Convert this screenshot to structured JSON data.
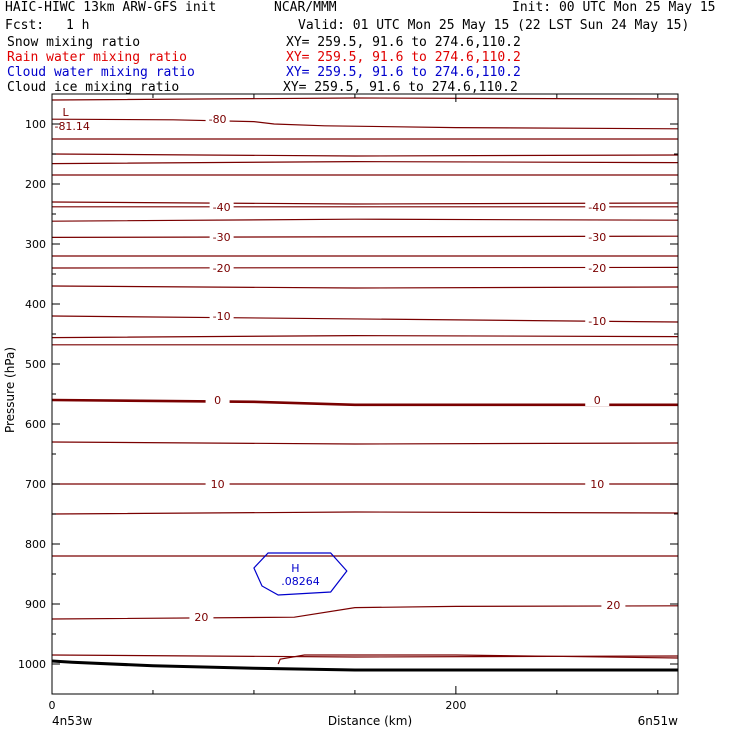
{
  "header": {
    "model": "HAIC-HIWC 13km ARW-GFS init",
    "org": "NCAR/MMM",
    "init": "Init: 00 UTC Mon 25 May 15",
    "fcst_label": "Fcst:",
    "fcst_value": "1 h",
    "valid": "Valid: 01 UTC Mon 25 May 15 (22 LST Sun 24 May 15)"
  },
  "fields": [
    {
      "name": "Snow mixing ratio",
      "xy": "XY= 259.5, 91.6 to 274.6,110.2",
      "color": "#000000"
    },
    {
      "name": "Rain water mixing ratio",
      "xy": "XY= 259.5, 91.6 to 274.6,110.2",
      "color": "#e00000"
    },
    {
      "name": "Cloud water mixing ratio",
      "xy": "XY= 259.5, 91.6 to 274.6,110.2",
      "color": "#0000cc"
    },
    {
      "name": "Cloud ice mixing ratio",
      "xy": "XY= 259.5, 91.6 to 274.6,110.2",
      "color": "#000000"
    }
  ],
  "chart_data": {
    "type": "line",
    "xlabel": "Distance (km)",
    "ylabel": "Pressure (hPa)",
    "xlim": [
      0,
      310
    ],
    "ylim": [
      1050,
      50
    ],
    "x_ticks": [
      0,
      200
    ],
    "x_minor_step": 50,
    "y_ticks": [
      100,
      200,
      300,
      400,
      500,
      600,
      700,
      800,
      900,
      1000
    ],
    "y_minor_step": 50,
    "endpoints": {
      "left": "4n53w",
      "right": "6n51w"
    },
    "temperature_contours": [
      {
        "level": "-80",
        "label_at": [
          82,
          92
        ],
        "points": [
          [
            0,
            92
          ],
          [
            60,
            93
          ],
          [
            100,
            96
          ],
          [
            110,
            100
          ],
          [
            135,
            103
          ],
          [
            200,
            106
          ],
          [
            310,
            108
          ]
        ]
      },
      {
        "level": "-40",
        "label_at": [
          [
            84,
            238
          ],
          [
            270,
            238
          ]
        ],
        "points": [
          [
            0,
            238
          ],
          [
            310,
            238
          ]
        ]
      },
      {
        "level": "-30",
        "label_at": [
          [
            84,
            288
          ],
          [
            270,
            288
          ]
        ],
        "points": [
          [
            0,
            289
          ],
          [
            310,
            287
          ]
        ]
      },
      {
        "level": "-20",
        "label_at": [
          [
            84,
            340
          ],
          [
            270,
            340
          ]
        ],
        "points": [
          [
            0,
            340
          ],
          [
            310,
            339
          ]
        ]
      },
      {
        "level": "-10",
        "label_at": [
          [
            84,
            420
          ],
          [
            270,
            428
          ]
        ],
        "points": [
          [
            0,
            420
          ],
          [
            310,
            430
          ]
        ]
      },
      {
        "level": "0",
        "label_at": [
          [
            82,
            560
          ],
          [
            270,
            560
          ]
        ],
        "points": [
          [
            0,
            560
          ],
          [
            100,
            563
          ],
          [
            150,
            568
          ],
          [
            310,
            568
          ]
        ]
      },
      {
        "level": "10",
        "label_at": [
          [
            82,
            700
          ],
          [
            270,
            700
          ]
        ],
        "points": [
          [
            0,
            700
          ],
          [
            310,
            700
          ]
        ]
      },
      {
        "level": "20",
        "label_at": [
          [
            74,
            922
          ],
          [
            278,
            902
          ]
        ],
        "points": [
          [
            0,
            925
          ],
          [
            120,
            922
          ],
          [
            150,
            906
          ],
          [
            200,
            904
          ],
          [
            310,
            903
          ]
        ]
      }
    ],
    "other_contours_hpa": [
      60,
      125,
      150,
      166,
      185,
      230,
      262,
      320,
      370,
      456,
      468,
      630,
      750,
      820,
      985
    ],
    "minimum": {
      "label": "L",
      "value": "-81.14",
      "x": 25,
      "p": 100
    },
    "cloud_water_contour": {
      "high_label": "H",
      "high_value": ".08264",
      "x": 115,
      "p": 850,
      "points": [
        [
          100,
          840
        ],
        [
          107,
          815
        ],
        [
          138,
          815
        ],
        [
          146,
          845
        ],
        [
          138,
          880
        ],
        [
          112,
          885
        ],
        [
          104,
          870
        ]
      ]
    },
    "terrain_pressure": {
      "x": [
        0,
        10,
        50,
        100,
        150,
        200,
        250,
        310
      ],
      "p": [
        995,
        997,
        1003,
        1007,
        1010,
        1010,
        1010,
        1010
      ]
    },
    "near_surface_contour": {
      "points": [
        [
          112,
          1000
        ],
        [
          113,
          992
        ],
        [
          125,
          985
        ],
        [
          150,
          985
        ],
        [
          200,
          985
        ],
        [
          310,
          990
        ]
      ]
    }
  }
}
